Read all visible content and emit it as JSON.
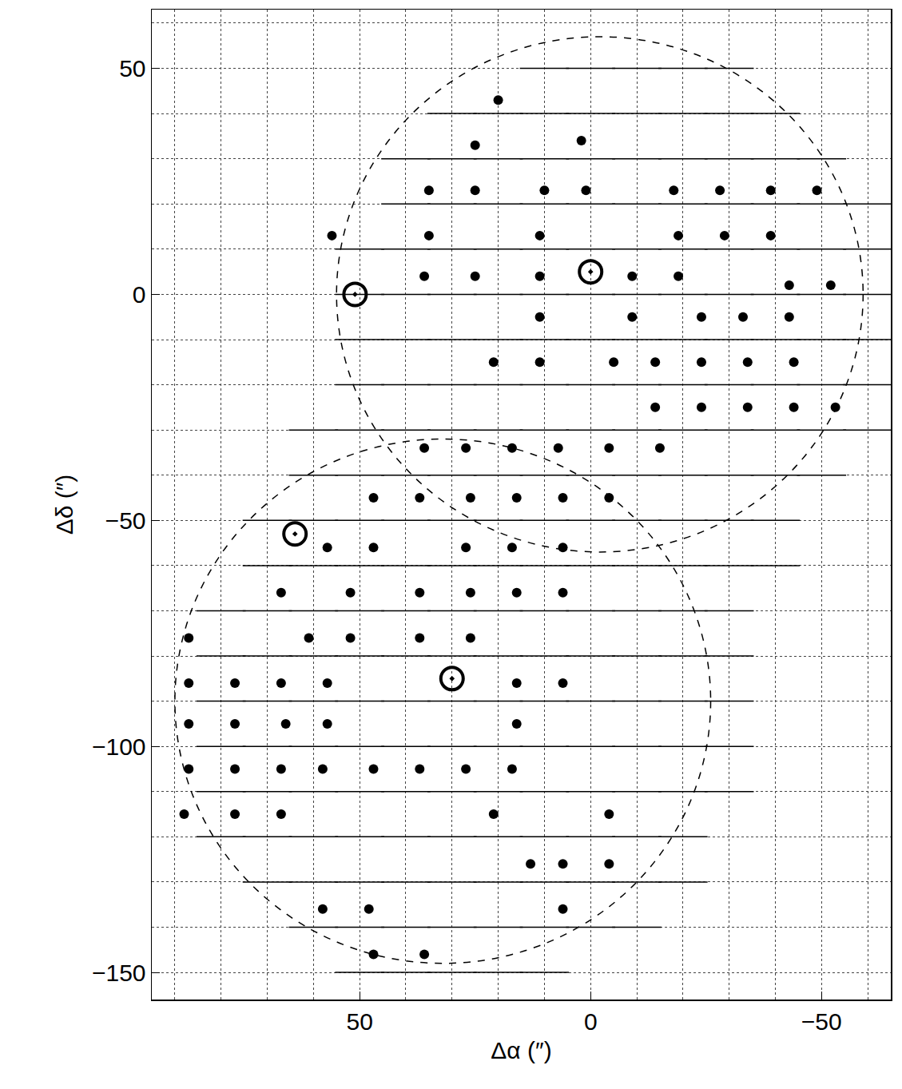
{
  "chart_data": {
    "type": "scatter",
    "x_label": "Δα (″)",
    "y_label": "Δδ (″)",
    "xlim": [
      95,
      -65
    ],
    "ylim": [
      -156,
      63
    ],
    "xticks": [
      50,
      0,
      -50
    ],
    "yticks": [
      50,
      0,
      -50,
      -100,
      -150
    ],
    "grid": true,
    "circles": [
      {
        "x": -2,
        "y": 0,
        "r": 57
      },
      {
        "x": 32,
        "y": -90,
        "r": 58
      }
    ],
    "series": [
      {
        "type": "spectra",
        "marker": "line-ew",
        "color": "#000000",
        "rows": [
          {
            "y": 50,
            "x": [
              10,
              0,
              -10,
              -20,
              -30
            ]
          },
          {
            "y": 40,
            "x": [
              30,
              20,
              10,
              0,
              -10,
              -20,
              -30,
              -40
            ]
          },
          {
            "y": 30,
            "x": [
              40,
              30,
              20,
              10,
              0,
              -10,
              -20,
              -30,
              -40,
              -50
            ]
          },
          {
            "y": 20,
            "x": [
              40,
              30,
              20,
              10,
              0,
              -10,
              -20,
              -30,
              -40,
              -50,
              -60
            ]
          },
          {
            "y": 10,
            "x": [
              50,
              40,
              30,
              20,
              10,
              0,
              -10,
              -20,
              -30,
              -40,
              -50,
              -60
            ]
          },
          {
            "y": 0,
            "x": [
              50,
              40,
              30,
              20,
              10,
              0,
              -10,
              -20,
              -30,
              -40,
              -50,
              -60
            ]
          },
          {
            "y": -10,
            "x": [
              50,
              40,
              30,
              20,
              10,
              0,
              -10,
              -20,
              -30,
              -40,
              -50,
              -60
            ]
          },
          {
            "y": -20,
            "x": [
              50,
              40,
              30,
              20,
              10,
              0,
              -10,
              -20,
              -30,
              -40,
              -50,
              -60
            ]
          },
          {
            "y": -30,
            "x": [
              60,
              50,
              40,
              30,
              20,
              10,
              0,
              -10,
              -20,
              -30,
              -40,
              -50,
              -60
            ]
          },
          {
            "y": -40,
            "x": [
              60,
              50,
              40,
              30,
              20,
              10,
              0,
              -10,
              -20,
              -30,
              -40,
              -50
            ]
          },
          {
            "y": -50,
            "x": [
              70,
              60,
              50,
              40,
              30,
              20,
              10,
              0,
              -10,
              -20,
              -30,
              -40
            ]
          },
          {
            "y": -60,
            "x": [
              70,
              60,
              50,
              40,
              30,
              20,
              10,
              0,
              -10,
              -20,
              -30,
              -40
            ]
          },
          {
            "y": -70,
            "x": [
              80,
              70,
              60,
              50,
              40,
              30,
              20,
              10,
              0,
              -10,
              -20,
              -30
            ]
          },
          {
            "y": -80,
            "x": [
              80,
              70,
              60,
              50,
              40,
              30,
              20,
              10,
              0,
              -10,
              -20,
              -30
            ]
          },
          {
            "y": -90,
            "x": [
              80,
              70,
              60,
              50,
              40,
              30,
              20,
              10,
              0,
              -10,
              -20,
              -30
            ]
          },
          {
            "y": -100,
            "x": [
              80,
              70,
              60,
              50,
              40,
              30,
              20,
              10,
              0,
              -10,
              -20,
              -30
            ]
          },
          {
            "y": -110,
            "x": [
              80,
              70,
              60,
              50,
              40,
              30,
              20,
              10,
              0,
              -10,
              -20,
              -30
            ]
          },
          {
            "y": -120,
            "x": [
              80,
              70,
              60,
              50,
              40,
              30,
              20,
              10,
              0,
              -10,
              -20
            ]
          },
          {
            "y": -130,
            "x": [
              70,
              60,
              50,
              40,
              30,
              20,
              10,
              0,
              -10,
              -20
            ]
          },
          {
            "y": -140,
            "x": [
              60,
              50,
              40,
              30,
              20,
              10,
              0,
              -10
            ]
          },
          {
            "y": -150,
            "x": [
              50,
              40,
              30,
              20,
              10
            ]
          }
        ]
      },
      {
        "type": "scatter",
        "marker": "circle",
        "color": "#000000",
        "x": [
          20,
          25,
          2,
          35,
          25,
          10,
          1,
          -18,
          -28,
          -39,
          -49,
          56,
          35,
          11,
          -19,
          -29,
          -39,
          36,
          25,
          11,
          -9,
          -19,
          -43,
          -52,
          11,
          -9,
          -24,
          -33,
          -43,
          21,
          11,
          -5,
          -14,
          -24,
          -34,
          -44,
          -14,
          -24,
          -34,
          -44,
          -53,
          36,
          27,
          17,
          7,
          -4,
          -15,
          47,
          37,
          26,
          16,
          6,
          -4,
          57,
          47,
          27,
          17,
          6,
          67,
          52,
          37,
          26,
          16,
          6,
          87,
          61,
          52,
          37,
          26,
          87,
          77,
          67,
          57,
          16,
          6,
          87,
          77,
          66,
          57,
          16,
          87,
          77,
          67,
          58,
          47,
          37,
          27,
          17,
          88,
          77,
          67,
          21,
          -4,
          13,
          6,
          -4,
          58,
          48,
          6,
          47,
          36
        ],
        "y": [
          43,
          33,
          34,
          23,
          23,
          23,
          23,
          23,
          23,
          23,
          23,
          13,
          13,
          13,
          13,
          13,
          13,
          4,
          4,
          4,
          4,
          4,
          2,
          2,
          -5,
          -5,
          -5,
          -5,
          -5,
          -15,
          -15,
          -15,
          -15,
          -15,
          -15,
          -15,
          -25,
          -25,
          -25,
          -25,
          -25,
          -34,
          -34,
          -34,
          -34,
          -34,
          -34,
          -45,
          -45,
          -45,
          -45,
          -45,
          -45,
          -56,
          -56,
          -56,
          -56,
          -56,
          -66,
          -66,
          -66,
          -66,
          -66,
          -66,
          -76,
          -76,
          -76,
          -76,
          -76,
          -86,
          -86,
          -86,
          -86,
          -86,
          -86,
          -95,
          -95,
          -95,
          -95,
          -95,
          -105,
          -105,
          -105,
          -105,
          -105,
          -105,
          -105,
          -105,
          -115,
          -115,
          -115,
          -115,
          -115,
          -126,
          -126,
          -126,
          -136,
          -136,
          -136,
          -146,
          -146
        ]
      },
      {
        "type": "scatter",
        "marker": "circle-open-dot",
        "color": "#000000",
        "x": [
          51,
          0,
          64,
          30
        ],
        "y": [
          0,
          5,
          -53,
          -85
        ]
      }
    ]
  }
}
